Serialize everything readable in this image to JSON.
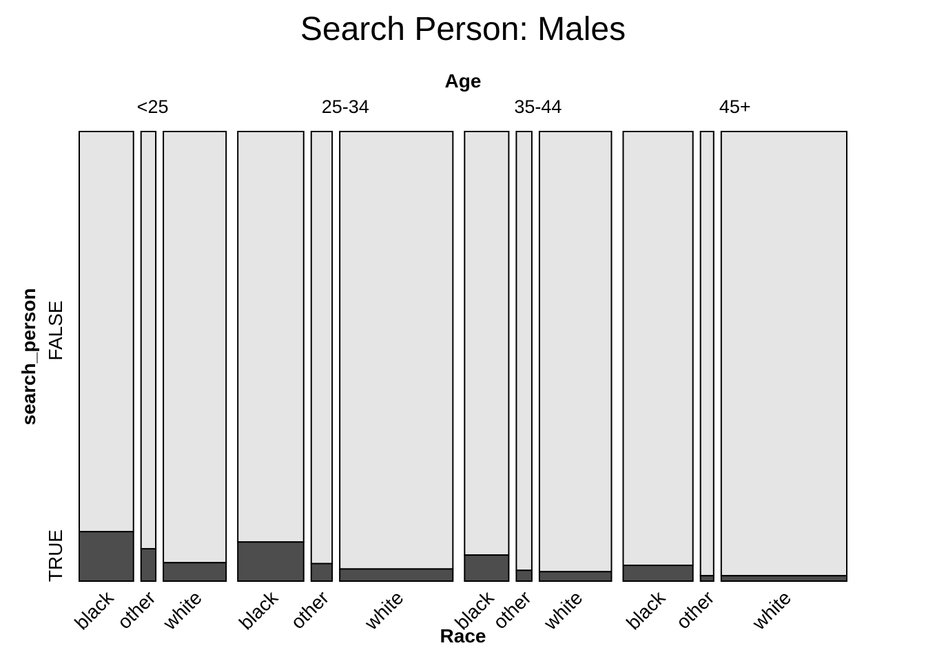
{
  "chart_data": {
    "type": "mosaic",
    "title": "Search Person: Males",
    "top_axis_label": "Age",
    "xlabel": "Race",
    "ylabel": "search_person",
    "y_levels": [
      "FALSE",
      "TRUE"
    ],
    "groups": [
      {
        "age": "<25",
        "cells": [
          {
            "race": "black",
            "count_share": 0.07,
            "true_fraction": 0.11
          },
          {
            "race": "other",
            "count_share": 0.019,
            "true_fraction": 0.072
          },
          {
            "race": "white",
            "count_share": 0.081,
            "true_fraction": 0.041
          }
        ]
      },
      {
        "age": "25-34",
        "cells": [
          {
            "race": "black",
            "count_share": 0.085,
            "true_fraction": 0.087
          },
          {
            "race": "other",
            "count_share": 0.027,
            "true_fraction": 0.039
          },
          {
            "race": "white",
            "count_share": 0.146,
            "true_fraction": 0.027
          }
        ]
      },
      {
        "age": "35-44",
        "cells": [
          {
            "race": "black",
            "count_share": 0.057,
            "true_fraction": 0.058
          },
          {
            "race": "other",
            "count_share": 0.02,
            "true_fraction": 0.024
          },
          {
            "race": "white",
            "count_share": 0.093,
            "true_fraction": 0.021
          }
        ]
      },
      {
        "age": "45+",
        "cells": [
          {
            "race": "black",
            "count_share": 0.09,
            "true_fraction": 0.035
          },
          {
            "race": "other",
            "count_share": 0.017,
            "true_fraction": 0.012
          },
          {
            "race": "white",
            "count_share": 0.162,
            "true_fraction": 0.012
          }
        ]
      }
    ],
    "colors": {
      "FALSE": "#e5e5e5",
      "TRUE": "#4d4d4d",
      "border": "#000000"
    }
  }
}
